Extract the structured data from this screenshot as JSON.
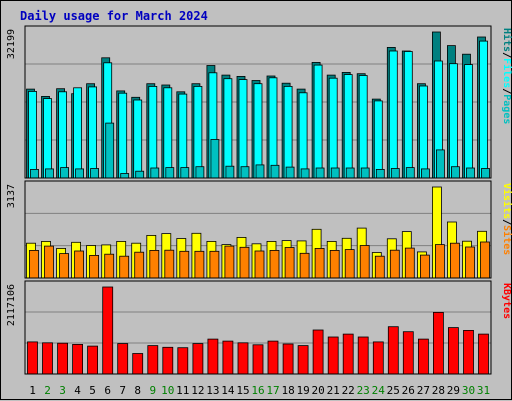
{
  "title": "Daily usage for March 2024",
  "chart_data": {
    "type": "bar",
    "title": "Daily usage for March 2024",
    "days": [
      "1",
      "2",
      "3",
      "4",
      "5",
      "6",
      "7",
      "8",
      "9",
      "10",
      "11",
      "12",
      "13",
      "14",
      "15",
      "16",
      "17",
      "18",
      "19",
      "20",
      "21",
      "22",
      "23",
      "24",
      "25",
      "26",
      "27",
      "28",
      "29",
      "30",
      "31"
    ],
    "weekend_days": [
      "2",
      "3",
      "9",
      "10",
      "16",
      "17",
      "23",
      "24",
      "30",
      "31"
    ],
    "panels": [
      {
        "name": "hits-panel",
        "axis_label": "32199",
        "legend": [
          "Pages",
          "Files",
          "Hits"
        ],
        "series": [
          {
            "name": "Hits",
            "color": "#008080",
            "values": [
              19600,
              18000,
              19700,
              18600,
              20800,
              26500,
              19200,
              17800,
              20800,
              20500,
              19000,
              20800,
              24800,
              22700,
              22400,
              21500,
              22500,
              20900,
              19600,
              25500,
              22700,
              23300,
              23000,
              17400,
              28800,
              28000,
              20800,
              32199,
              29200,
              27300,
              31100
            ]
          },
          {
            "name": "Files",
            "color": "#00ffff",
            "values": [
              19100,
              17500,
              19000,
              19900,
              20100,
              25400,
              18700,
              17200,
              20200,
              19900,
              18500,
              20200,
              23200,
              21900,
              21700,
              20800,
              22100,
              20200,
              18800,
              24900,
              22000,
              22800,
              22600,
              17000,
              28000,
              27900,
              20300,
              25800,
              25200,
              25000,
              30200
            ]
          },
          {
            "name": "Pages",
            "color": "#00c0c0",
            "values": [
              1900,
              2000,
              2300,
              2000,
              2100,
              12100,
              1000,
              1500,
              2200,
              2300,
              2300,
              2500,
              8500,
              2600,
              2500,
              2900,
              2800,
              2400,
              2000,
              2200,
              2200,
              2200,
              2200,
              1900,
              2100,
              2300,
              2000,
              6200,
              2500,
              2200,
              2100
            ]
          }
        ]
      },
      {
        "name": "visits-panel",
        "axis_label": "3137",
        "legend": [
          "Sites",
          "Visits"
        ],
        "series": [
          {
            "name": "Visits",
            "color": "#ffff00",
            "values": [
              1200,
              1260,
              1020,
              1230,
              1120,
              1140,
              1260,
              1200,
              1470,
              1530,
              1360,
              1540,
              1260,
              1150,
              1400,
              1180,
              1260,
              1290,
              1280,
              1680,
              1260,
              1370,
              1720,
              880,
              1350,
              1600,
              900,
              3137,
              1930,
              1270,
              1610
            ]
          },
          {
            "name": "Sites",
            "color": "#ff8000",
            "values": [
              950,
              1100,
              840,
              930,
              780,
              820,
              750,
              890,
              950,
              960,
              920,
              920,
              920,
              1100,
              1060,
              930,
              950,
              1050,
              850,
              1020,
              950,
              980,
              1120,
              750,
              960,
              1030,
              790,
              1150,
              1200,
              1070,
              1240
            ]
          }
        ]
      },
      {
        "name": "kbytes-panel",
        "axis_label": "2117106",
        "legend": [
          "KBytes"
        ],
        "series": [
          {
            "name": "KBytes",
            "color": "#ff0000",
            "values": [
              780000,
              760000,
              750000,
              720000,
              680000,
              2117106,
              740000,
              500000,
              690000,
              650000,
              640000,
              740000,
              850000,
              800000,
              760000,
              710000,
              800000,
              730000,
              690000,
              1070000,
              900000,
              970000,
              900000,
              780000,
              1150000,
              1030000,
              850000,
              1500000,
              1130000,
              1060000,
              970000
            ]
          }
        ]
      }
    ]
  }
}
